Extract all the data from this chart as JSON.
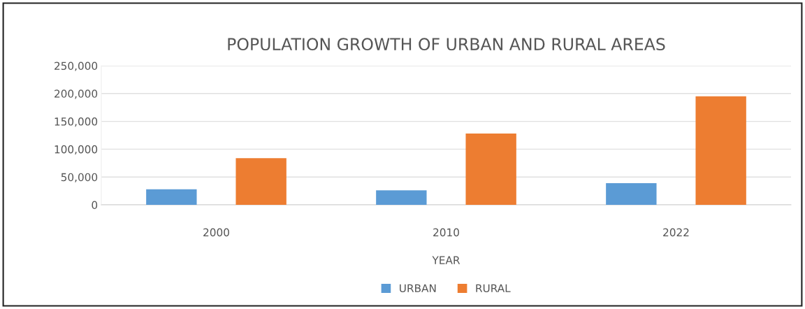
{
  "chart_data": {
    "type": "bar",
    "title": "POPULATION GROWTH OF URBAN AND RURAL AREAS",
    "xlabel": "YEAR",
    "categories": [
      "2000",
      "2010",
      "2022"
    ],
    "series": [
      {
        "name": "URBAN",
        "color": "#5b9bd5",
        "values": [
          28000,
          26000,
          39000
        ]
      },
      {
        "name": "RURAL",
        "color": "#ed7d31",
        "values": [
          84000,
          128000,
          195000
        ]
      }
    ],
    "ylim": [
      0,
      250000
    ],
    "yticks": [
      {
        "value": 0,
        "label": "0"
      },
      {
        "value": 50000,
        "label": "50,000"
      },
      {
        "value": 100000,
        "label": "100,000"
      },
      {
        "value": 150000,
        "label": "150,000"
      },
      {
        "value": 200000,
        "label": "200,000"
      },
      {
        "value": 250000,
        "label": "250,000"
      }
    ],
    "grid": "y",
    "legend": "bottom"
  }
}
